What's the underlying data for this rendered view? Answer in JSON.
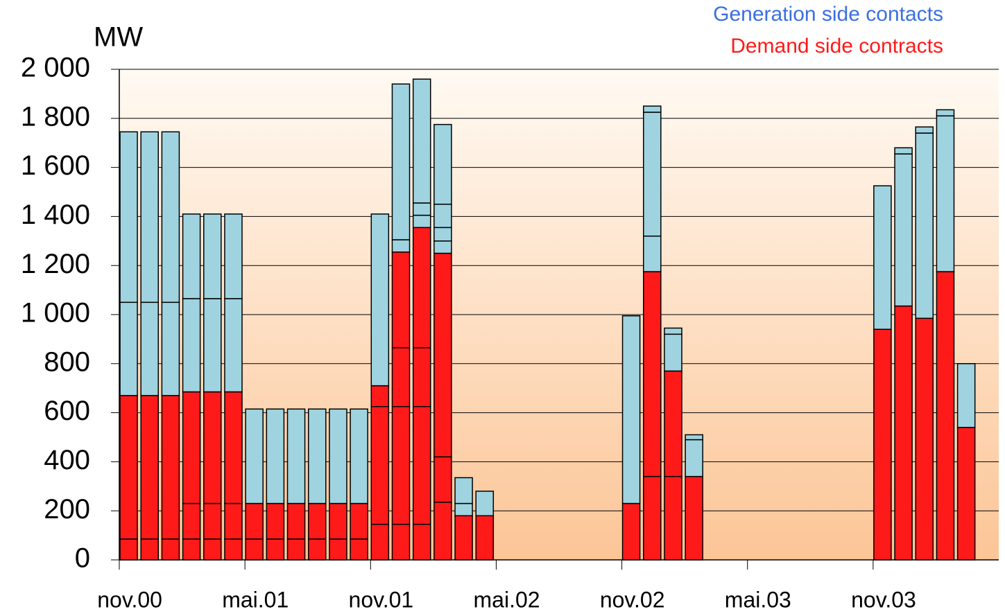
{
  "chart_data": {
    "type": "stacked-bar",
    "y_label": "MW",
    "categories": [
      "nov.00",
      null,
      null,
      null,
      null,
      null,
      "mai.01",
      null,
      null,
      null,
      null,
      null,
      "nov.01",
      null,
      null,
      null,
      null,
      null,
      "mai.02",
      null,
      null,
      null,
      null,
      null,
      "nov.02",
      null,
      null,
      null,
      null,
      null,
      "mai.03",
      null,
      null,
      null,
      null,
      null,
      "nov.03",
      null,
      null,
      null,
      null,
      null
    ],
    "series": [
      {
        "name": "Demand side contracts",
        "color": "#ff1a1a",
        "values": [
          [
            85,
            585
          ],
          [
            85,
            585
          ],
          [
            85,
            585
          ],
          [
            85,
            145,
            455
          ],
          [
            85,
            145,
            455
          ],
          [
            85,
            145,
            455
          ],
          [
            85,
            145
          ],
          [
            85,
            145
          ],
          [
            85,
            145
          ],
          [
            85,
            145
          ],
          [
            85,
            145
          ],
          [
            85,
            145
          ],
          [
            145,
            480,
            85
          ],
          [
            145,
            480,
            240,
            390
          ],
          [
            145,
            480,
            240,
            490
          ],
          [
            235,
            185,
            830
          ],
          [
            180
          ],
          [
            180
          ],
          null,
          null,
          null,
          null,
          null,
          null,
          [
            230
          ],
          [
            340,
            835
          ],
          [
            340,
            430
          ],
          [
            340
          ],
          null,
          null,
          null,
          null,
          null,
          null,
          null,
          null,
          [
            940
          ],
          [
            1035
          ],
          [
            985
          ],
          [
            1175
          ],
          [
            540
          ],
          null
        ]
      },
      {
        "name": "Generation side contacts",
        "color": "#9fd3e0",
        "legend_color": "#3b6fe0",
        "values": [
          [
            380,
            695
          ],
          [
            380,
            695
          ],
          [
            380,
            695
          ],
          [
            380,
            345
          ],
          [
            380,
            345
          ],
          [
            380,
            345
          ],
          [
            385
          ],
          [
            385
          ],
          [
            385
          ],
          [
            385
          ],
          [
            385
          ],
          [
            385
          ],
          [
            700
          ],
          [
            50,
            635
          ],
          [
            50,
            50,
            505
          ],
          [
            50,
            55,
            95,
            325
          ],
          [
            50,
            105
          ],
          [
            100
          ],
          null,
          null,
          null,
          null,
          null,
          null,
          [
            765
          ],
          [
            145,
            505,
            25
          ],
          [
            150,
            25
          ],
          [
            150,
            20
          ],
          null,
          null,
          null,
          null,
          null,
          null,
          null,
          null,
          [
            585
          ],
          [
            620,
            25
          ],
          [
            755,
            25
          ],
          [
            635,
            25
          ],
          [
            260
          ],
          null
        ]
      }
    ],
    "ylim": [
      0,
      2000
    ],
    "yticks": [
      0,
      200,
      400,
      600,
      800,
      {
        "value": 1000,
        "label": "1 000"
      },
      {
        "value": 1200,
        "label": "1 200"
      },
      {
        "value": 1400,
        "label": "1 400"
      },
      {
        "value": 1600,
        "label": "1 600"
      },
      {
        "value": 1800,
        "label": "1 800"
      },
      {
        "value": 2000,
        "label": "2 000"
      }
    ],
    "grid": true,
    "legend": "top-right"
  }
}
